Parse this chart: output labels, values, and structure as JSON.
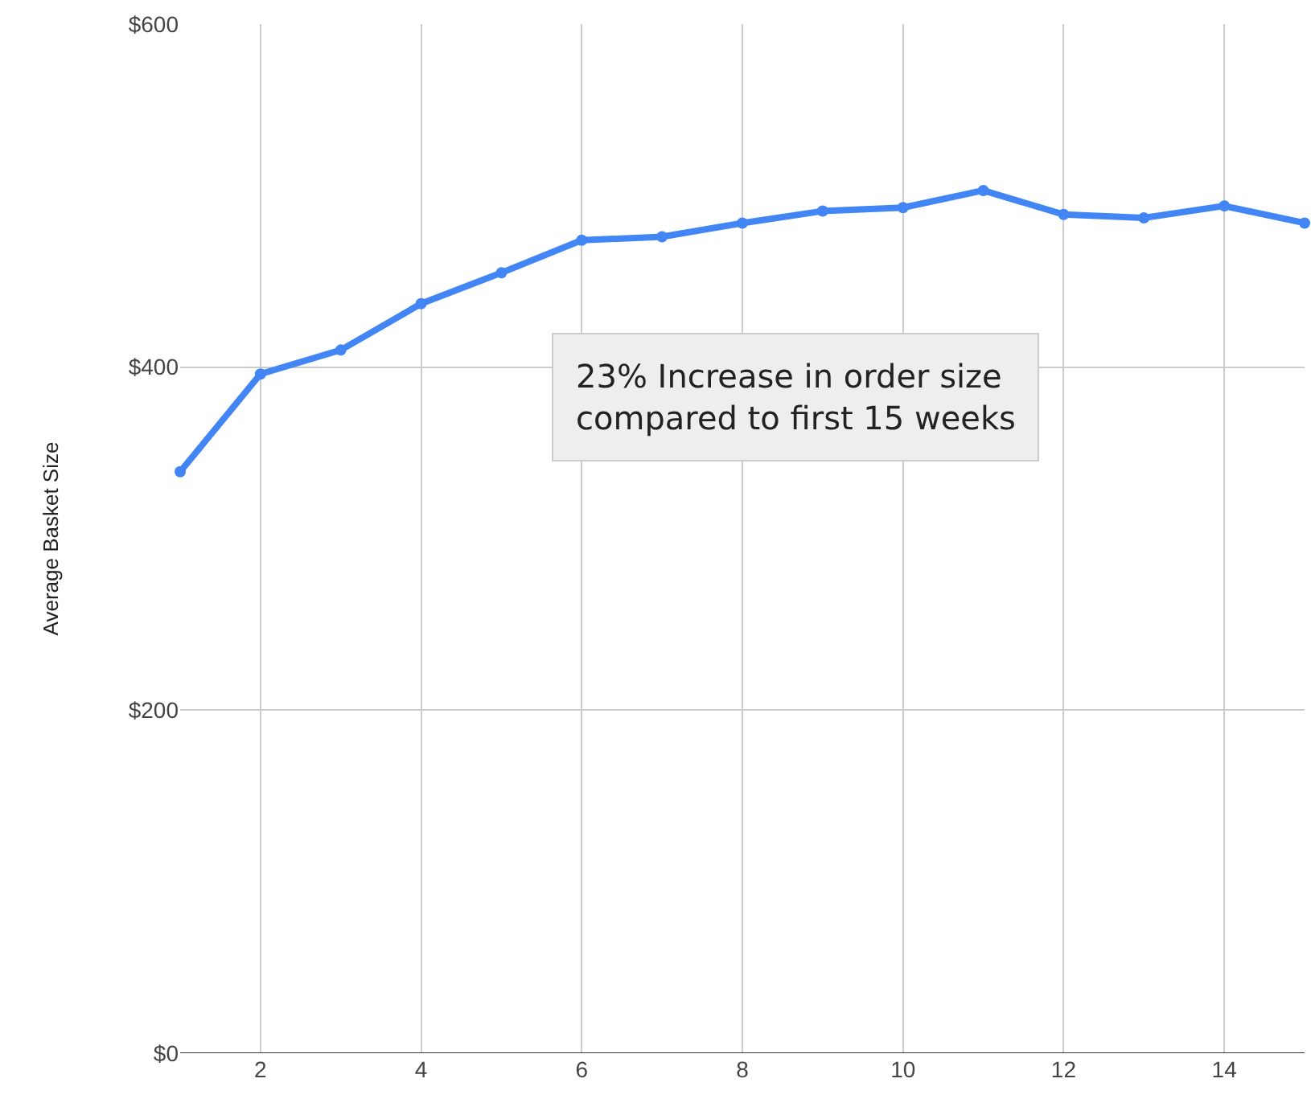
{
  "chart_data": {
    "type": "line",
    "ylabel": "Average Basket Size",
    "x": [
      1,
      2,
      3,
      4,
      5,
      6,
      7,
      8,
      9,
      10,
      11,
      12,
      13,
      14,
      15
    ],
    "series": [
      {
        "color": "#4285f4",
        "values": [
          339,
          396,
          410,
          437,
          455,
          474,
          476,
          484,
          491,
          493,
          503,
          489,
          487,
          494,
          484
        ]
      }
    ],
    "xlim": [
      1,
      15
    ],
    "xticks": [
      2,
      4,
      6,
      8,
      10,
      12,
      14
    ],
    "ylim": [
      0,
      600
    ],
    "yticks": [
      {
        "value": 0,
        "label": "$0"
      },
      {
        "value": 200,
        "label": "$200"
      },
      {
        "value": 400,
        "label": "$400"
      },
      {
        "value": 600,
        "label": "$600"
      }
    ],
    "grid": true,
    "marker": "circle",
    "line_style": "solid",
    "legend": false,
    "annotations": [
      "23% Increase in order size compared to first 15 weeks"
    ]
  }
}
